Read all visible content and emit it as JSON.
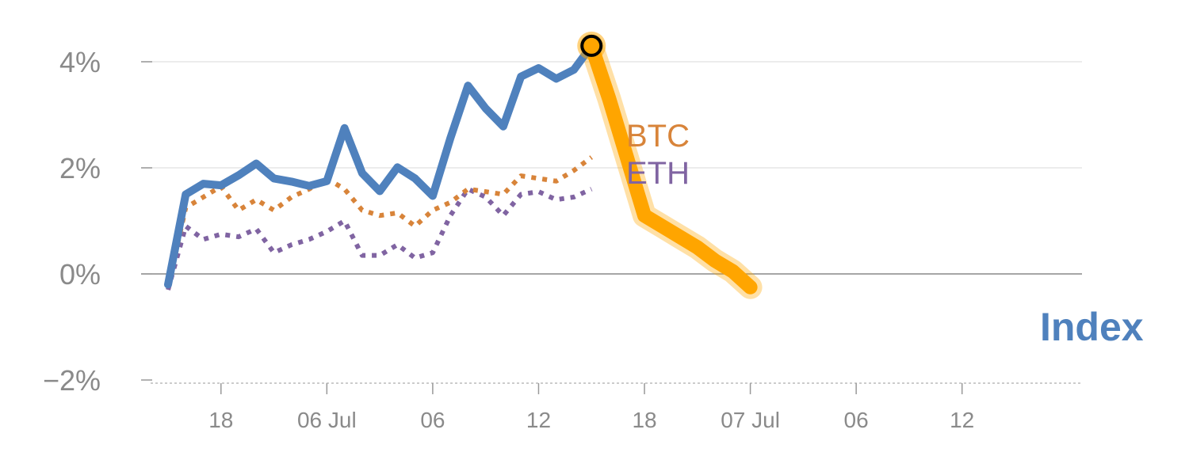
{
  "chart_data": {
    "type": "line",
    "title": "",
    "xlabel": "",
    "ylabel": "",
    "ylim": [
      -2,
      4.6
    ],
    "y_ticks": [
      {
        "value": 4,
        "label": "4%"
      },
      {
        "value": 2,
        "label": "2%"
      },
      {
        "value": 0,
        "label": "0%"
      },
      {
        "value": -2,
        "label": "−2%"
      }
    ],
    "x_count": 51,
    "x_ticks": [
      {
        "index": 4,
        "label": "18"
      },
      {
        "index": 10,
        "label": "06 Jul"
      },
      {
        "index": 16,
        "label": "06"
      },
      {
        "index": 22,
        "label": "12"
      },
      {
        "index": 28,
        "label": "18"
      },
      {
        "index": 34,
        "label": "07 Jul"
      },
      {
        "index": 40,
        "label": "06"
      },
      {
        "index": 46,
        "label": "12"
      }
    ],
    "grid": true,
    "series": [
      {
        "name": "Index",
        "color": "#4f81bd",
        "style": "solid",
        "label_color": "#4f81bd",
        "start_index": 1,
        "values": [
          -0.2,
          1.5,
          1.7,
          1.67,
          1.86,
          2.08,
          1.8,
          1.74,
          1.66,
          1.75,
          2.75,
          1.9,
          1.56,
          2.01,
          1.8,
          1.47,
          2.56,
          3.55,
          3.12,
          2.78,
          3.72,
          3.88,
          3.68,
          3.85,
          4.3
        ]
      },
      {
        "name": "BTC",
        "color": "#d8843a",
        "style": "dotted",
        "label_color": "#d8843a",
        "start_index": 1,
        "values": [
          -0.25,
          1.25,
          1.45,
          1.65,
          1.2,
          1.4,
          1.2,
          1.45,
          1.6,
          1.8,
          1.6,
          1.2,
          1.1,
          1.15,
          0.9,
          1.2,
          1.35,
          1.6,
          1.55,
          1.5,
          1.85,
          1.8,
          1.75,
          1.95,
          2.2
        ]
      },
      {
        "name": "ETH",
        "color": "#8064a2",
        "style": "dotted",
        "label_color": "#8064a2",
        "start_index": 1,
        "values": [
          -0.3,
          0.9,
          0.65,
          0.75,
          0.7,
          0.85,
          0.4,
          0.55,
          0.65,
          0.8,
          1.0,
          0.35,
          0.35,
          0.55,
          0.3,
          0.4,
          1.1,
          1.6,
          1.45,
          1.1,
          1.5,
          1.55,
          1.4,
          1.45,
          1.6
        ]
      },
      {
        "name": "",
        "color": "#ffa500",
        "style": "thick-highlight",
        "start_index": 25,
        "values": [
          4.3,
          3.3,
          2.2,
          1.1,
          0.9,
          0.7,
          0.5,
          0.25,
          0.05,
          -0.25
        ]
      }
    ],
    "highlight_point": {
      "index": 25,
      "value": 4.3,
      "fill": "#ffa500",
      "stroke": "#000000"
    },
    "highlight_x_indices": [
      25,
      35,
      51
    ]
  }
}
